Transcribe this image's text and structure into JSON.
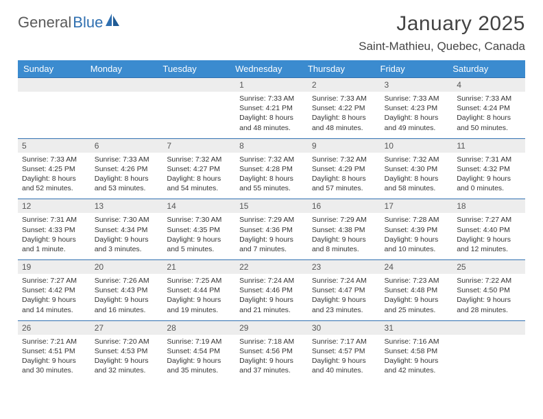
{
  "brand": {
    "general": "General",
    "blue": "Blue"
  },
  "title": {
    "month": "January 2025",
    "location": "Saint-Mathieu, Quebec, Canada"
  },
  "colors": {
    "header_bg": "#3b8bcf",
    "header_text": "#ffffff",
    "week_border": "#2f6fb0",
    "daynum_bg": "#ededed",
    "text": "#333333",
    "page_bg": "#ffffff"
  },
  "daysOfWeek": [
    "Sunday",
    "Monday",
    "Tuesday",
    "Wednesday",
    "Thursday",
    "Friday",
    "Saturday"
  ],
  "weeks": [
    [
      {
        "empty": true
      },
      {
        "empty": true
      },
      {
        "empty": true
      },
      {
        "num": "1",
        "sunrise": "7:33 AM",
        "sunset": "4:21 PM",
        "daylight": "8 hours and 48 minutes."
      },
      {
        "num": "2",
        "sunrise": "7:33 AM",
        "sunset": "4:22 PM",
        "daylight": "8 hours and 48 minutes."
      },
      {
        "num": "3",
        "sunrise": "7:33 AM",
        "sunset": "4:23 PM",
        "daylight": "8 hours and 49 minutes."
      },
      {
        "num": "4",
        "sunrise": "7:33 AM",
        "sunset": "4:24 PM",
        "daylight": "8 hours and 50 minutes."
      }
    ],
    [
      {
        "num": "5",
        "sunrise": "7:33 AM",
        "sunset": "4:25 PM",
        "daylight": "8 hours and 52 minutes."
      },
      {
        "num": "6",
        "sunrise": "7:33 AM",
        "sunset": "4:26 PM",
        "daylight": "8 hours and 53 minutes."
      },
      {
        "num": "7",
        "sunrise": "7:32 AM",
        "sunset": "4:27 PM",
        "daylight": "8 hours and 54 minutes."
      },
      {
        "num": "8",
        "sunrise": "7:32 AM",
        "sunset": "4:28 PM",
        "daylight": "8 hours and 55 minutes."
      },
      {
        "num": "9",
        "sunrise": "7:32 AM",
        "sunset": "4:29 PM",
        "daylight": "8 hours and 57 minutes."
      },
      {
        "num": "10",
        "sunrise": "7:32 AM",
        "sunset": "4:30 PM",
        "daylight": "8 hours and 58 minutes."
      },
      {
        "num": "11",
        "sunrise": "7:31 AM",
        "sunset": "4:32 PM",
        "daylight": "9 hours and 0 minutes."
      }
    ],
    [
      {
        "num": "12",
        "sunrise": "7:31 AM",
        "sunset": "4:33 PM",
        "daylight": "9 hours and 1 minute."
      },
      {
        "num": "13",
        "sunrise": "7:30 AM",
        "sunset": "4:34 PM",
        "daylight": "9 hours and 3 minutes."
      },
      {
        "num": "14",
        "sunrise": "7:30 AM",
        "sunset": "4:35 PM",
        "daylight": "9 hours and 5 minutes."
      },
      {
        "num": "15",
        "sunrise": "7:29 AM",
        "sunset": "4:36 PM",
        "daylight": "9 hours and 7 minutes."
      },
      {
        "num": "16",
        "sunrise": "7:29 AM",
        "sunset": "4:38 PM",
        "daylight": "9 hours and 8 minutes."
      },
      {
        "num": "17",
        "sunrise": "7:28 AM",
        "sunset": "4:39 PM",
        "daylight": "9 hours and 10 minutes."
      },
      {
        "num": "18",
        "sunrise": "7:27 AM",
        "sunset": "4:40 PM",
        "daylight": "9 hours and 12 minutes."
      }
    ],
    [
      {
        "num": "19",
        "sunrise": "7:27 AM",
        "sunset": "4:42 PM",
        "daylight": "9 hours and 14 minutes."
      },
      {
        "num": "20",
        "sunrise": "7:26 AM",
        "sunset": "4:43 PM",
        "daylight": "9 hours and 16 minutes."
      },
      {
        "num": "21",
        "sunrise": "7:25 AM",
        "sunset": "4:44 PM",
        "daylight": "9 hours and 19 minutes."
      },
      {
        "num": "22",
        "sunrise": "7:24 AM",
        "sunset": "4:46 PM",
        "daylight": "9 hours and 21 minutes."
      },
      {
        "num": "23",
        "sunrise": "7:24 AM",
        "sunset": "4:47 PM",
        "daylight": "9 hours and 23 minutes."
      },
      {
        "num": "24",
        "sunrise": "7:23 AM",
        "sunset": "4:48 PM",
        "daylight": "9 hours and 25 minutes."
      },
      {
        "num": "25",
        "sunrise": "7:22 AM",
        "sunset": "4:50 PM",
        "daylight": "9 hours and 28 minutes."
      }
    ],
    [
      {
        "num": "26",
        "sunrise": "7:21 AM",
        "sunset": "4:51 PM",
        "daylight": "9 hours and 30 minutes."
      },
      {
        "num": "27",
        "sunrise": "7:20 AM",
        "sunset": "4:53 PM",
        "daylight": "9 hours and 32 minutes."
      },
      {
        "num": "28",
        "sunrise": "7:19 AM",
        "sunset": "4:54 PM",
        "daylight": "9 hours and 35 minutes."
      },
      {
        "num": "29",
        "sunrise": "7:18 AM",
        "sunset": "4:56 PM",
        "daylight": "9 hours and 37 minutes."
      },
      {
        "num": "30",
        "sunrise": "7:17 AM",
        "sunset": "4:57 PM",
        "daylight": "9 hours and 40 minutes."
      },
      {
        "num": "31",
        "sunrise": "7:16 AM",
        "sunset": "4:58 PM",
        "daylight": "9 hours and 42 minutes."
      },
      {
        "empty": true
      }
    ]
  ],
  "labels": {
    "sunrise": "Sunrise:",
    "sunset": "Sunset:",
    "daylight": "Daylight:"
  }
}
